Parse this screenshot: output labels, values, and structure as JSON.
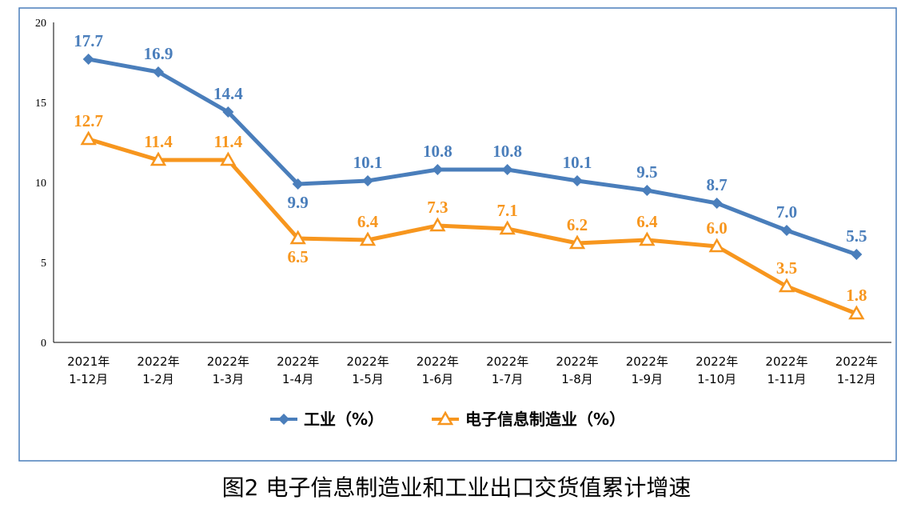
{
  "chart_data": {
    "type": "line",
    "categories": [
      [
        "2021年",
        "1-12月"
      ],
      [
        "2022年",
        "1-2月"
      ],
      [
        "2022年",
        "1-3月"
      ],
      [
        "2022年",
        "1-4月"
      ],
      [
        "2022年",
        "1-5月"
      ],
      [
        "2022年",
        "1-6月"
      ],
      [
        "2022年",
        "1-7月"
      ],
      [
        "2022年",
        "1-8月"
      ],
      [
        "2022年",
        "1-9月"
      ],
      [
        "2022年",
        "1-10月"
      ],
      [
        "2022年",
        "1-11月"
      ],
      [
        "2022年",
        "1-12月"
      ]
    ],
    "series": [
      {
        "name": "工业（%）",
        "color": "#4a7ebb",
        "marker": "diamond",
        "values": [
          17.7,
          16.9,
          14.4,
          9.9,
          10.1,
          10.8,
          10.8,
          10.1,
          9.5,
          8.7,
          7.0,
          5.5
        ],
        "labels": [
          "17.7",
          "16.9",
          "14.4",
          "9.9",
          "10.1",
          "10.8",
          "10.8",
          "10.1",
          "9.5",
          "8.7",
          "7.0",
          "5.5"
        ]
      },
      {
        "name": "电子信息制造业（%）",
        "color": "#f7961e",
        "marker": "triangle",
        "values": [
          12.7,
          11.4,
          11.4,
          6.5,
          6.4,
          7.3,
          7.1,
          6.2,
          6.4,
          6.0,
          3.5,
          1.8
        ],
        "labels": [
          "12.7",
          "11.4",
          "11.4",
          "6.5",
          "6.4",
          "7.3",
          "7.1",
          "6.2",
          "6.4",
          "6.0",
          "3.5",
          "1.8"
        ]
      }
    ],
    "yticks": [
      "0",
      "5",
      "10",
      "15",
      "20"
    ],
    "ylim": [
      0,
      20
    ],
    "grid": false,
    "legend_position": "bottom"
  },
  "caption": "图2 电子信息制造业和工业出口交货值累计增速"
}
